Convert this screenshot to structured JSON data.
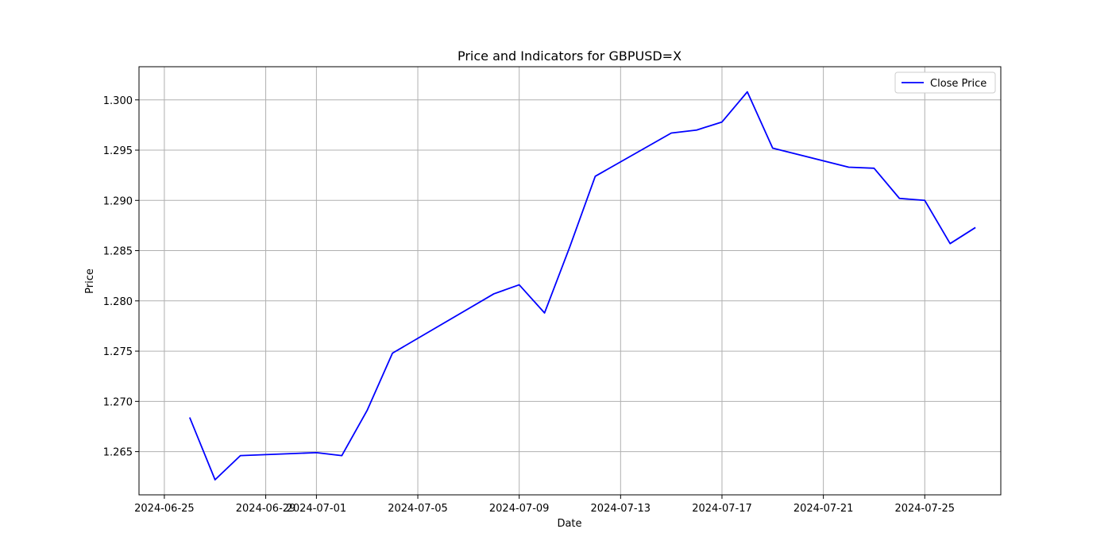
{
  "chart_data": {
    "type": "line",
    "title": "Price and Indicators for GBPUSD=X",
    "xlabel": "Date",
    "ylabel": "Price",
    "xlim": [
      "2024-06-24",
      "2024-07-28"
    ],
    "ylim": [
      1.2607,
      1.3033
    ],
    "grid": true,
    "legend_position": "top-right",
    "x_ticks": [
      "2024-06-25",
      "2024-06-29",
      "2024-07-01",
      "2024-07-05",
      "2024-07-09",
      "2024-07-13",
      "2024-07-17",
      "2024-07-21",
      "2024-07-25"
    ],
    "y_ticks": [
      "1.265",
      "1.270",
      "1.275",
      "1.280",
      "1.285",
      "1.290",
      "1.295",
      "1.300"
    ],
    "series": [
      {
        "name": "Close Price",
        "color": "#0000ff",
        "x": [
          "2024-06-26",
          "2024-06-27",
          "2024-06-28",
          "2024-07-01",
          "2024-07-02",
          "2024-07-03",
          "2024-07-04",
          "2024-07-08",
          "2024-07-09",
          "2024-07-10",
          "2024-07-11",
          "2024-07-12",
          "2024-07-15",
          "2024-07-16",
          "2024-07-17",
          "2024-07-18",
          "2024-07-19",
          "2024-07-22",
          "2024-07-23",
          "2024-07-24",
          "2024-07-25",
          "2024-07-26",
          "2024-07-27"
        ],
        "y": [
          1.2684,
          1.2622,
          1.2646,
          1.2649,
          1.2646,
          1.2691,
          1.2748,
          1.2807,
          1.2816,
          1.2788,
          1.2854,
          1.2924,
          1.2967,
          1.297,
          1.2978,
          1.3008,
          1.2952,
          1.2933,
          1.2932,
          1.2902,
          1.29,
          1.2857,
          1.2873
        ]
      }
    ]
  }
}
